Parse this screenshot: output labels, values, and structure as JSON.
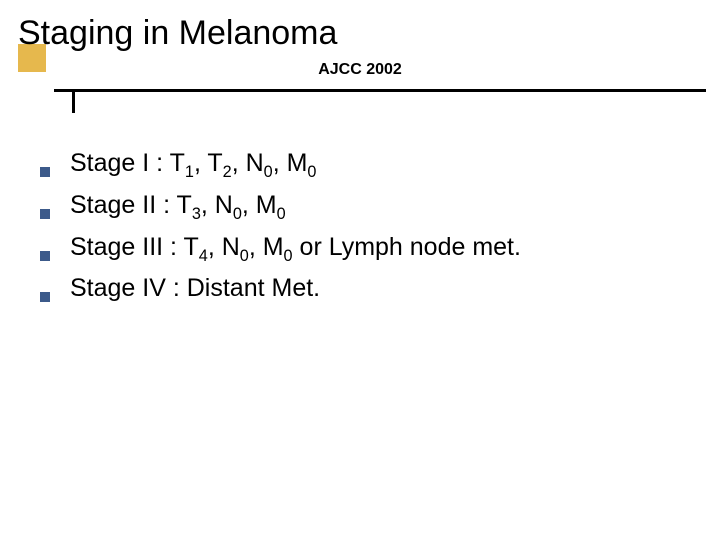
{
  "slide": {
    "title": "Staging in Melanoma",
    "subtitle": "AJCC 2002",
    "accent_color": "#e6b84d",
    "rule_color": "#000000",
    "bullet_color": "#3c5a8a",
    "title_fontsize": 34,
    "subtitle_fontsize": 16,
    "body_fontsize": 25,
    "items": [
      {
        "html": "Stage I : T<sub>1</sub>, T<sub>2</sub>, N<sub>0</sub>, M<sub>0</sub>"
      },
      {
        "html": "Stage II : T<sub>3</sub>, N<sub>0</sub>, M<sub>0</sub>"
      },
      {
        "html": "Stage III : T<sub>4</sub>, N<sub>0</sub>, M<sub>0</sub> or Lymph node met."
      },
      {
        "html": "Stage IV : Distant Met."
      }
    ]
  }
}
